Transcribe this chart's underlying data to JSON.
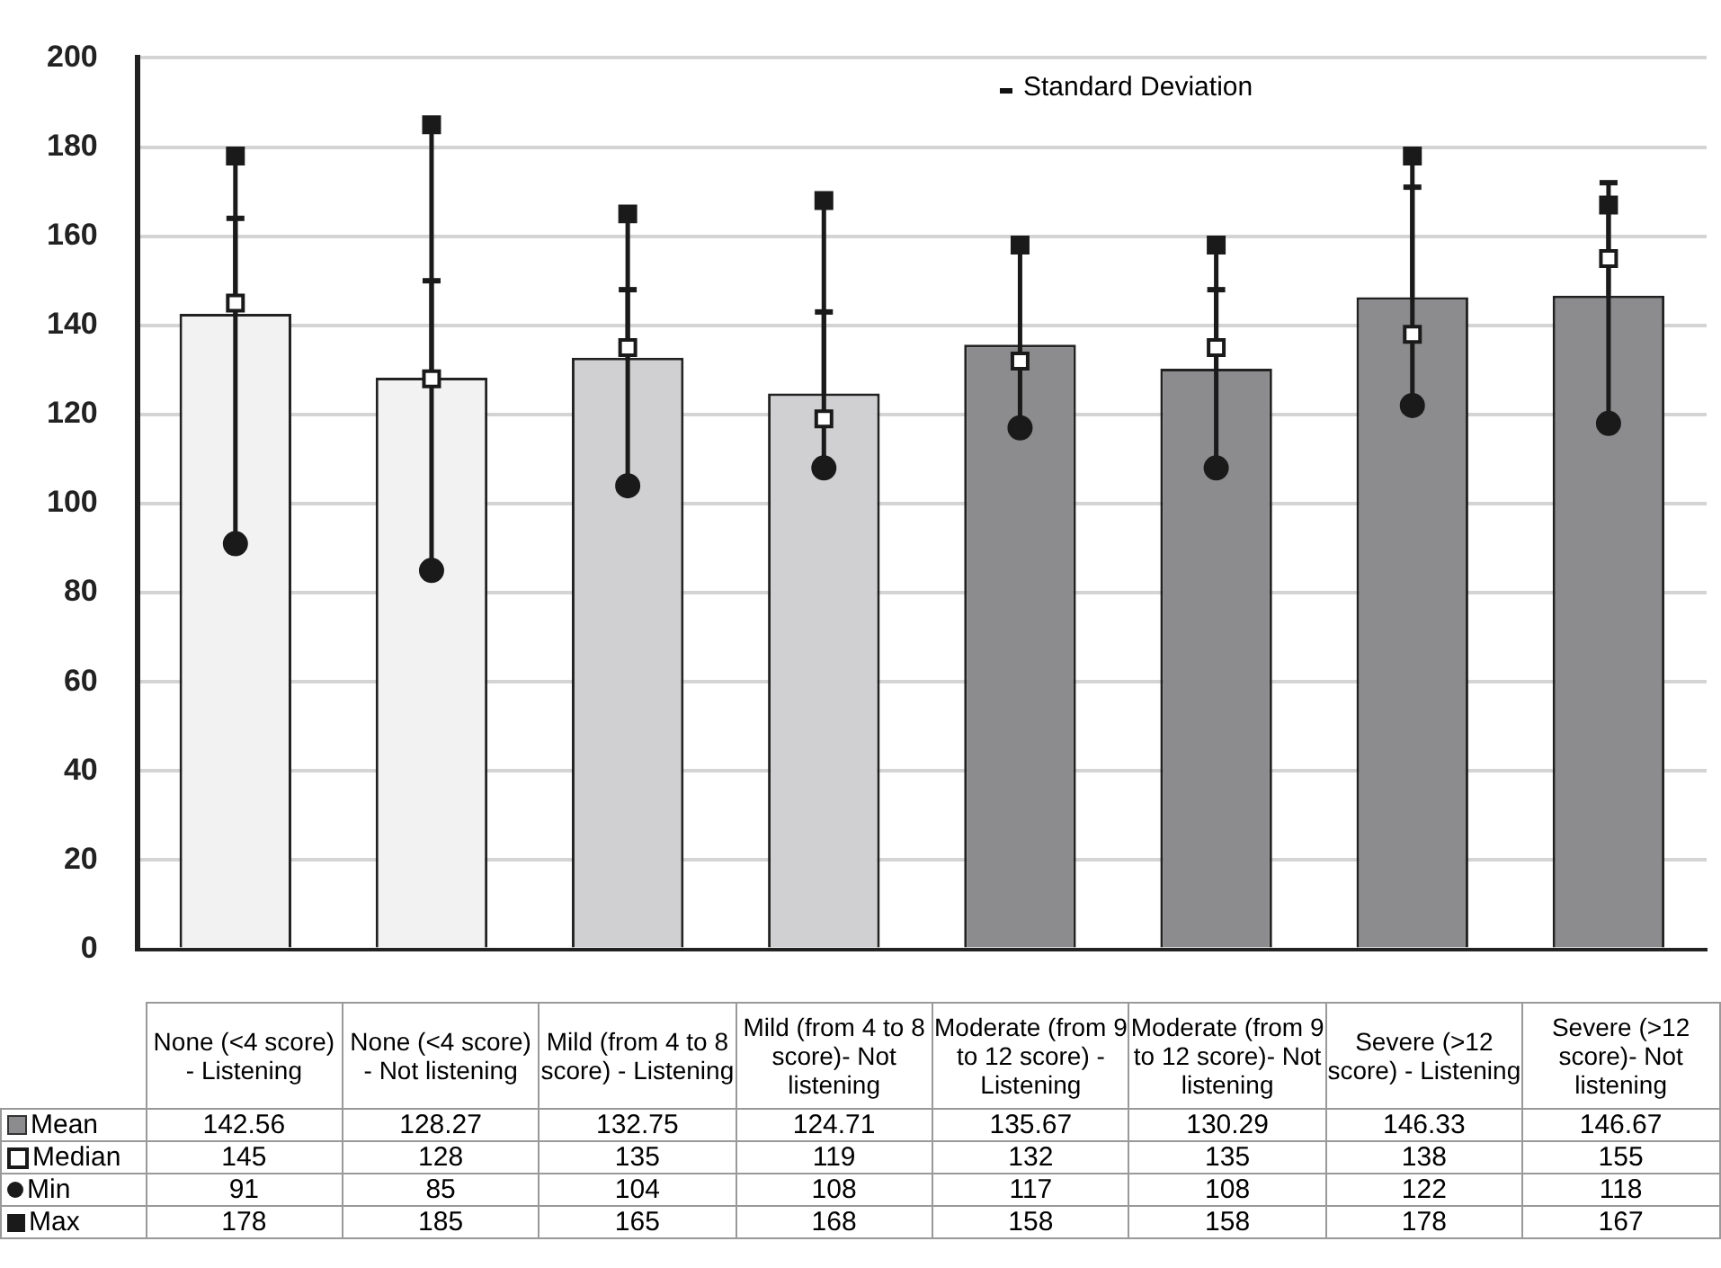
{
  "chart_data": {
    "type": "bar",
    "categories": [
      "None (<4 score) - Listening",
      "None (<4 score) - Not listening",
      "Mild (from 4 to 8 score) - Listening",
      "Mild (from 4 to 8 score)- Not listening",
      "Moderate (from 9 to 12 score) - Listening",
      "Moderate (from 9 to 12 score)- Not listening",
      "Severe (>12 score) - Listening",
      "Severe (>12 score)- Not listening"
    ],
    "series": [
      {
        "name": "Mean",
        "colors": [
          "#f2f2f2",
          "#f2f2f2",
          "#d0d0d2",
          "#d0d0d2",
          "#8c8c8e",
          "#8c8c8e",
          "#8c8c8e",
          "#8c8c8e"
        ],
        "values": [
          142.56,
          128.27,
          132.75,
          124.71,
          135.67,
          130.29,
          146.33,
          146.67
        ],
        "errors": [
          [
            142.56,
            164
          ],
          [
            128.27,
            150
          ],
          [
            132.75,
            148
          ],
          [
            124.71,
            143
          ],
          null,
          [
            130.29,
            148
          ],
          [
            146.33,
            171
          ],
          [
            146.67,
            172
          ]
        ]
      },
      {
        "name": "Median",
        "type": "scatter",
        "marker": "square",
        "color": "#ffffff",
        "values": [
          145,
          128,
          135,
          119,
          132,
          135,
          138,
          155
        ]
      },
      {
        "name": "Min",
        "type": "scatter",
        "marker": "circle",
        "color": "#1a1a1a",
        "values": [
          91,
          85,
          104,
          108,
          117,
          108,
          122,
          118
        ]
      },
      {
        "name": "Max",
        "type": "scatter",
        "marker": "square",
        "color": "#1a1a1a",
        "values": [
          178,
          185,
          165,
          168,
          158,
          158,
          178,
          167
        ]
      }
    ],
    "ylim": [
      0,
      200
    ],
    "yticks": [
      0,
      20,
      40,
      60,
      80,
      100,
      120,
      140,
      160,
      180,
      200
    ],
    "grid": "y",
    "data_labels": true,
    "legend": "bottom left",
    "annotations": [
      "Standard Deviation"
    ]
  }
}
